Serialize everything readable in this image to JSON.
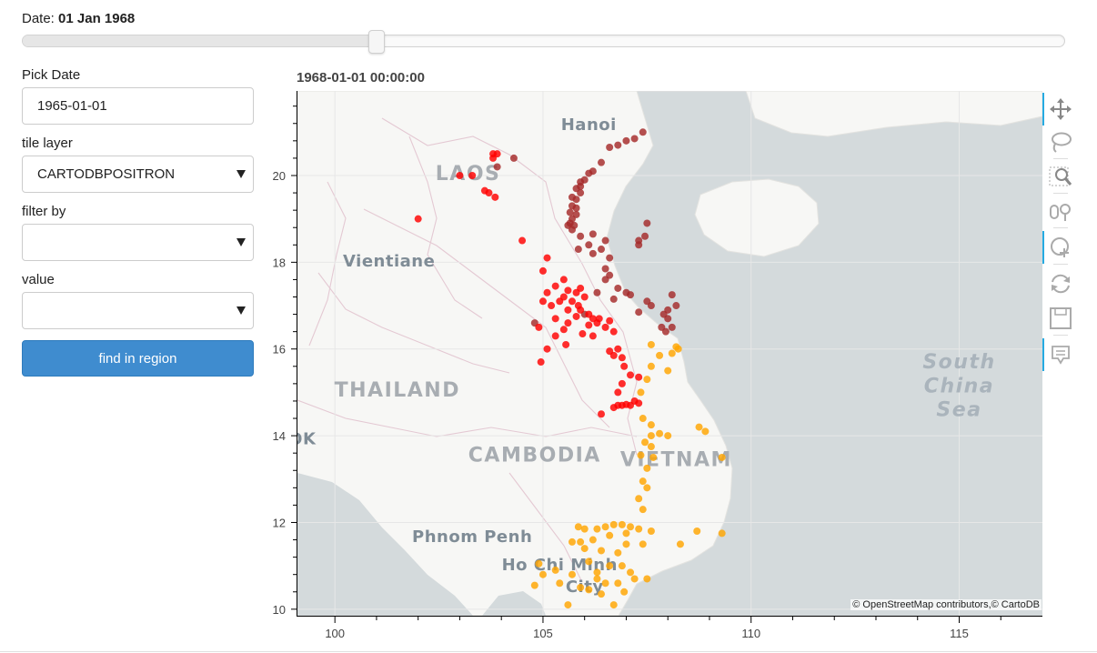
{
  "date_header": {
    "label": "Date:",
    "value": "01 Jan 1968"
  },
  "date_slider": {
    "value_fraction": 0.339
  },
  "sidebar": {
    "pick_date_label": "Pick Date",
    "pick_date_value": "1965-01-01",
    "tile_layer_label": "tile layer",
    "tile_layer_value": "CARTODBPOSITRON",
    "filter_by_label": "filter by",
    "filter_by_value": "",
    "value_label": "value",
    "value_value": "",
    "find_button": "find in region"
  },
  "plot": {
    "title": "1968-01-01 00:00:00",
    "attribution": "© OpenStreetMap contributors,© CartoDB",
    "map_labels": [
      {
        "text": "Hanoi",
        "lon": 106.1,
        "lat": 21.05,
        "size": "city"
      },
      {
        "text": "LAOS",
        "lon": 103.2,
        "lat": 19.9,
        "size": "country"
      },
      {
        "text": "Vientiane",
        "lon": 101.3,
        "lat": 17.9,
        "size": "city"
      },
      {
        "text": "THAILAND",
        "lon": 101.5,
        "lat": 14.9,
        "size": "country"
      },
      {
        "text": "GKOK",
        "lon": 98.9,
        "lat": 13.8,
        "size": "city"
      },
      {
        "text": "CAMBODIA",
        "lon": 104.8,
        "lat": 13.4,
        "size": "country"
      },
      {
        "text": "VIETNAM",
        "lon": 108.2,
        "lat": 13.3,
        "size": "country"
      },
      {
        "text": "Phnom Penh",
        "lon": 103.3,
        "lat": 11.55,
        "size": "city"
      },
      {
        "text": "Ho Chi Minh",
        "lon": 105.4,
        "lat": 10.9,
        "size": "city"
      },
      {
        "text": "City",
        "lon": 106.0,
        "lat": 10.4,
        "size": "city"
      },
      {
        "text": "South",
        "lon": 115.0,
        "lat": 15.55,
        "size": "sea"
      },
      {
        "text": "China",
        "lon": 115.0,
        "lat": 15.0,
        "size": "sea"
      },
      {
        "text": "Sea",
        "lon": 115.0,
        "lat": 14.45,
        "size": "sea"
      }
    ],
    "colors": {
      "dark": "#a52a2a",
      "red": "#ff0000",
      "orange": "#ffa500"
    }
  },
  "chart_data": {
    "type": "scatter",
    "title": "1968-01-01 00:00:00",
    "xlabel": "",
    "ylabel": "",
    "xlim": [
      99.1,
      117.0
    ],
    "ylim": [
      9.85,
      21.95
    ],
    "xticks": [
      100,
      105,
      110,
      115
    ],
    "yticks": [
      10,
      12,
      14,
      16,
      18,
      20
    ],
    "grid": true,
    "series": [
      {
        "color": "#a52a2a",
        "points": [
          [
            107.4,
            21.0
          ],
          [
            107.2,
            20.85
          ],
          [
            107.0,
            20.8
          ],
          [
            106.8,
            20.7
          ],
          [
            106.6,
            20.65
          ],
          [
            106.4,
            20.3
          ],
          [
            106.2,
            20.1
          ],
          [
            106.1,
            20.05
          ],
          [
            106.0,
            19.9
          ],
          [
            105.9,
            19.85
          ],
          [
            105.9,
            19.75
          ],
          [
            105.8,
            19.7
          ],
          [
            105.9,
            19.6
          ],
          [
            105.7,
            19.5
          ],
          [
            105.8,
            19.45
          ],
          [
            105.7,
            19.3
          ],
          [
            105.8,
            19.25
          ],
          [
            105.65,
            19.15
          ],
          [
            105.8,
            19.1
          ],
          [
            105.7,
            19.0
          ],
          [
            105.65,
            18.9
          ],
          [
            105.75,
            18.85
          ],
          [
            105.6,
            18.85
          ],
          [
            105.7,
            18.75
          ],
          [
            105.9,
            18.6
          ],
          [
            106.2,
            18.65
          ],
          [
            107.5,
            18.9
          ],
          [
            106.5,
            18.5
          ],
          [
            106.1,
            18.4
          ],
          [
            105.85,
            18.3
          ],
          [
            106.2,
            18.2
          ],
          [
            106.4,
            18.3
          ],
          [
            106.6,
            18.1
          ],
          [
            106.5,
            17.85
          ],
          [
            106.6,
            17.7
          ],
          [
            106.5,
            17.6
          ],
          [
            107.3,
            18.5
          ],
          [
            107.3,
            18.4
          ],
          [
            107.45,
            18.6
          ],
          [
            106.8,
            17.4
          ],
          [
            107.0,
            17.3
          ],
          [
            106.3,
            17.3
          ],
          [
            106.7,
            17.15
          ],
          [
            107.1,
            17.25
          ],
          [
            107.5,
            17.1
          ],
          [
            107.6,
            17.0
          ],
          [
            108.1,
            17.25
          ],
          [
            108.2,
            17.0
          ],
          [
            108.0,
            16.9
          ],
          [
            107.9,
            16.8
          ],
          [
            108.0,
            16.7
          ],
          [
            108.1,
            16.5
          ],
          [
            107.85,
            16.5
          ],
          [
            107.95,
            16.4
          ],
          [
            107.3,
            16.85
          ],
          [
            104.3,
            20.4
          ],
          [
            106.0,
            16.8
          ],
          [
            104.8,
            16.6
          ],
          [
            103.9,
            20.2
          ]
        ]
      },
      {
        "color": "#ff0000",
        "points": [
          [
            103.8,
            20.5
          ],
          [
            103.9,
            20.5
          ],
          [
            103.8,
            20.4
          ],
          [
            103.0,
            20.0
          ],
          [
            103.3,
            20.0
          ],
          [
            103.6,
            19.65
          ],
          [
            103.7,
            19.6
          ],
          [
            103.85,
            19.5
          ],
          [
            102.0,
            19.0
          ],
          [
            104.5,
            18.5
          ],
          [
            105.1,
            18.1
          ],
          [
            105.0,
            17.8
          ],
          [
            105.5,
            17.6
          ],
          [
            105.3,
            17.45
          ],
          [
            105.6,
            17.35
          ],
          [
            105.8,
            17.3
          ],
          [
            105.9,
            17.4
          ],
          [
            105.1,
            17.3
          ],
          [
            105.0,
            17.1
          ],
          [
            105.2,
            17.0
          ],
          [
            105.4,
            17.1
          ],
          [
            105.5,
            17.2
          ],
          [
            105.7,
            17.1
          ],
          [
            105.85,
            17.0
          ],
          [
            106.0,
            17.2
          ],
          [
            105.9,
            16.9
          ],
          [
            106.1,
            16.8
          ],
          [
            106.2,
            16.7
          ],
          [
            106.3,
            16.6
          ],
          [
            106.5,
            16.5
          ],
          [
            106.6,
            16.65
          ],
          [
            105.6,
            16.9
          ],
          [
            105.8,
            16.75
          ],
          [
            105.6,
            16.6
          ],
          [
            105.3,
            16.7
          ],
          [
            104.9,
            16.5
          ],
          [
            105.3,
            16.3
          ],
          [
            105.1,
            16.0
          ],
          [
            105.55,
            16.1
          ],
          [
            106.2,
            16.3
          ],
          [
            106.7,
            16.4
          ],
          [
            106.8,
            16.0
          ],
          [
            106.6,
            15.95
          ],
          [
            106.9,
            15.8
          ],
          [
            106.95,
            15.6
          ],
          [
            106.7,
            15.85
          ],
          [
            104.95,
            15.7
          ],
          [
            107.1,
            15.4
          ],
          [
            107.3,
            15.35
          ],
          [
            106.9,
            15.2
          ],
          [
            106.8,
            15.0
          ],
          [
            107.2,
            14.8
          ],
          [
            107.3,
            14.75
          ],
          [
            107.1,
            14.7
          ],
          [
            106.9,
            14.7
          ],
          [
            106.7,
            14.65
          ],
          [
            106.8,
            14.7
          ],
          [
            107.0,
            14.72
          ],
          [
            106.4,
            14.5
          ],
          [
            105.5,
            16.45
          ],
          [
            106.1,
            16.55
          ],
          [
            105.95,
            16.35
          ],
          [
            106.35,
            16.7
          ]
        ]
      },
      {
        "color": "#ffa500",
        "points": [
          [
            107.6,
            16.1
          ],
          [
            108.2,
            16.05
          ],
          [
            108.1,
            15.9
          ],
          [
            108.25,
            16.0
          ],
          [
            107.8,
            15.85
          ],
          [
            107.6,
            15.6
          ],
          [
            108.0,
            15.5
          ],
          [
            107.5,
            15.3
          ],
          [
            107.35,
            15.0
          ],
          [
            107.4,
            14.4
          ],
          [
            107.6,
            14.25
          ],
          [
            107.8,
            14.05
          ],
          [
            108.0,
            14.0
          ],
          [
            107.6,
            14.0
          ],
          [
            108.75,
            14.2
          ],
          [
            108.9,
            14.1
          ],
          [
            107.45,
            13.85
          ],
          [
            107.6,
            13.75
          ],
          [
            107.35,
            13.55
          ],
          [
            107.65,
            13.5
          ],
          [
            109.3,
            13.5
          ],
          [
            107.5,
            13.25
          ],
          [
            107.4,
            12.95
          ],
          [
            107.5,
            12.8
          ],
          [
            107.3,
            12.55
          ],
          [
            107.4,
            12.3
          ],
          [
            106.7,
            11.95
          ],
          [
            106.9,
            11.95
          ],
          [
            107.1,
            11.9
          ],
          [
            106.5,
            11.9
          ],
          [
            106.3,
            11.85
          ],
          [
            106.0,
            11.85
          ],
          [
            105.85,
            11.9
          ],
          [
            107.3,
            11.85
          ],
          [
            107.6,
            11.8
          ],
          [
            108.7,
            11.8
          ],
          [
            109.3,
            11.75
          ],
          [
            107.0,
            11.75
          ],
          [
            106.6,
            11.7
          ],
          [
            106.2,
            11.6
          ],
          [
            105.9,
            11.55
          ],
          [
            105.7,
            11.55
          ],
          [
            106.0,
            11.4
          ],
          [
            106.4,
            11.35
          ],
          [
            106.8,
            11.3
          ],
          [
            107.0,
            11.5
          ],
          [
            107.4,
            11.5
          ],
          [
            108.3,
            11.5
          ],
          [
            106.1,
            11.1
          ],
          [
            106.6,
            11.0
          ],
          [
            106.9,
            11.0
          ],
          [
            107.1,
            10.85
          ],
          [
            107.5,
            10.7
          ],
          [
            106.3,
            10.7
          ],
          [
            106.5,
            10.6
          ],
          [
            106.8,
            10.6
          ],
          [
            107.2,
            10.7
          ],
          [
            105.9,
            10.5
          ],
          [
            106.1,
            10.45
          ],
          [
            105.6,
            10.1
          ],
          [
            104.9,
            11.05
          ],
          [
            105.0,
            10.8
          ],
          [
            104.8,
            10.55
          ],
          [
            105.3,
            10.9
          ],
          [
            105.4,
            10.6
          ],
          [
            106.4,
            10.35
          ],
          [
            106.7,
            10.1
          ],
          [
            106.3,
            10.85
          ],
          [
            105.7,
            10.8
          ],
          [
            106.95,
            10.4
          ]
        ]
      }
    ]
  }
}
